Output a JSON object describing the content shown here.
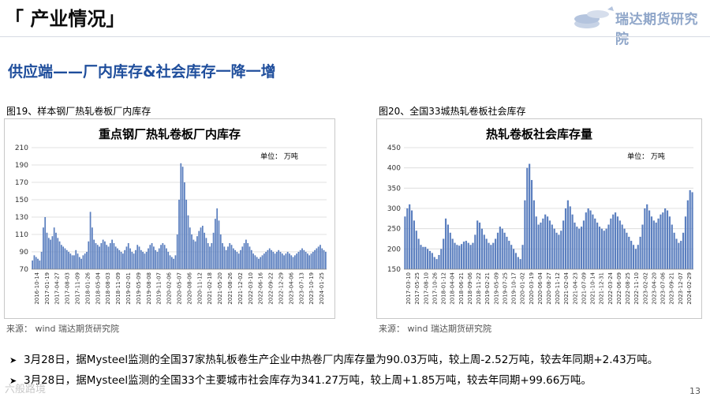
{
  "header": {
    "title": "「 产业情况」",
    "logo_text": "瑞达期货研究院"
  },
  "section_title": "供应端——厂内库存&社会库存一降一增",
  "figures": [
    {
      "caption": "图19、样本钢厂热轧卷板厂内库存",
      "source": "来源：  wind   瑞达期货研究院"
    },
    {
      "caption": "图20、全国33城热轧卷板社会库存",
      "source": "来源：  wind   瑞达期货研究院"
    }
  ],
  "bullets": [
    "3月28日，据Mysteel监测的全国37家热轧板卷生产企业中热卷厂内库存量为90.03万吨，较上周-2.52万吨，较去年同期+2.43万吨。",
    "3月28日，据Mysteel监测的全国33个主要城市社会库存为341.27万吨，较上周+1.85万吨，较去年同期+99.66万吨。"
  ],
  "page_number": "13",
  "watermark": "六般路境",
  "colors": {
    "bar": "#5b7fbf",
    "title_blue": "#1f4e9c"
  },
  "chart_data": [
    {
      "type": "bar",
      "title": "重点钢厂热轧卷板厂内库存",
      "unit_label": "单位：  万吨",
      "ylim": [
        70,
        210
      ],
      "yticks": [
        70,
        90,
        110,
        130,
        150,
        170,
        190,
        210
      ],
      "grid": true,
      "x_tick_labels": [
        "2016-10-14",
        "2017-01-19",
        "2017-04-27",
        "2017-08-03",
        "2017-11-09",
        "2018-01-26",
        "2018-05-04",
        "2018-08-03",
        "2018-11-09",
        "2019-02-01",
        "2019-05-09",
        "2019-08-08",
        "2019-11-07",
        "2020-02-06",
        "2020-05-07",
        "2020-08-06",
        "2020-11-12",
        "2021-02-18",
        "2021-05-20",
        "2021-08-26",
        "2021-12-02",
        "2022-03-10",
        "2022-06-16",
        "2022-09-22",
        "2022-12-29",
        "2023-04-06",
        "2023-07-13",
        "2023-10-19",
        "2024-01-25"
      ],
      "series": [
        {
          "values": [
            80,
            86,
            84,
            82,
            80,
            90,
            118,
            130,
            112,
            106,
            104,
            108,
            118,
            112,
            106,
            102,
            98,
            96,
            94,
            92,
            90,
            88,
            86,
            86,
            92,
            88,
            84,
            82,
            86,
            88,
            90,
            102,
            136,
            118,
            104,
            100,
            98,
            96,
            100,
            104,
            102,
            98,
            96,
            100,
            104,
            100,
            96,
            94,
            92,
            90,
            88,
            92,
            96,
            100,
            94,
            90,
            88,
            92,
            98,
            96,
            92,
            90,
            88,
            90,
            94,
            98,
            100,
            96,
            92,
            90,
            94,
            98,
            100,
            98,
            94,
            90,
            86,
            84,
            82,
            86,
            110,
            150,
            192,
            188,
            170,
            150,
            132,
            118,
            110,
            104,
            102,
            108,
            114,
            118,
            120,
            112,
            106,
            100,
            96,
            100,
            112,
            128,
            140,
            126,
            110,
            100,
            96,
            92,
            96,
            100,
            98,
            94,
            92,
            90,
            88,
            92,
            96,
            100,
            104,
            100,
            96,
            92,
            88,
            86,
            84,
            82,
            84,
            86,
            88,
            90,
            92,
            94,
            92,
            90,
            88,
            90,
            92,
            90,
            88,
            86,
            88,
            90,
            88,
            86,
            84,
            86,
            88,
            90,
            92,
            94,
            92,
            90,
            88,
            86,
            88,
            90,
            92,
            94,
            96,
            98,
            94,
            92,
            90
          ]
        }
      ]
    },
    {
      "type": "bar",
      "title": "热轧卷板社会库存量",
      "unit_label": "单位：  万吨",
      "ylim": [
        150,
        450
      ],
      "yticks": [
        150,
        200,
        250,
        300,
        350,
        400,
        450
      ],
      "grid": true,
      "x_tick_labels": [
        "2017-03-10",
        "2017-05-25",
        "2017-08-10",
        "2017-10-26",
        "2018-01-12",
        "2018-04-04",
        "2018-06-21",
        "2018-09-06",
        "2018-11-22",
        "2019-02-21",
        "2019-05-09",
        "2019-07-25",
        "2019-10-17",
        "2020-01-02",
        "2020-03-19",
        "2020-06-04",
        "2020-08-27",
        "2020-11-12",
        "2021-02-04",
        "2021-04-23",
        "2021-07-09",
        "2021-10-14",
        "2021-12-31",
        "2022-03-24",
        "2022-06-09",
        "2022-08-25",
        "2022-11-10",
        "2023-02-02",
        "2023-04-20",
        "2023-07-06",
        "2023-09-21",
        "2023-12-07",
        "2024-02-29"
      ],
      "series": [
        {
          "values": [
            280,
            300,
            310,
            295,
            270,
            245,
            225,
            210,
            205,
            205,
            200,
            195,
            190,
            180,
            175,
            185,
            200,
            225,
            275,
            260,
            240,
            225,
            215,
            210,
            208,
            212,
            218,
            220,
            215,
            210,
            215,
            235,
            270,
            265,
            250,
            235,
            225,
            215,
            210,
            215,
            225,
            240,
            255,
            250,
            240,
            230,
            220,
            210,
            200,
            190,
            180,
            175,
            210,
            320,
            400,
            410,
            370,
            320,
            280,
            260,
            265,
            275,
            285,
            280,
            270,
            260,
            250,
            240,
            235,
            245,
            270,
            300,
            320,
            305,
            285,
            265,
            255,
            250,
            255,
            270,
            290,
            300,
            295,
            285,
            275,
            265,
            255,
            250,
            245,
            250,
            260,
            275,
            285,
            290,
            280,
            270,
            260,
            250,
            240,
            230,
            220,
            210,
            200,
            210,
            230,
            260,
            300,
            310,
            295,
            280,
            270,
            265,
            275,
            285,
            290,
            300,
            295,
            280,
            260,
            240,
            225,
            215,
            220,
            240,
            280,
            320,
            345,
            340
          ]
        }
      ]
    }
  ]
}
